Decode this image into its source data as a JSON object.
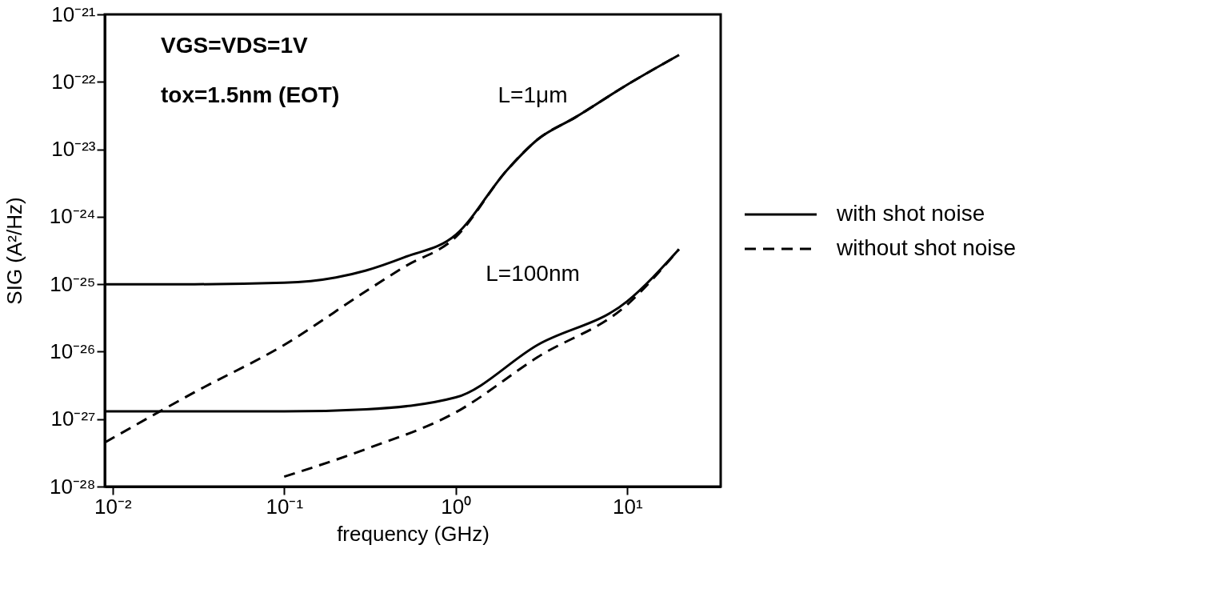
{
  "chart_data": {
    "type": "line",
    "xlabel": "frequency (GHz)",
    "ylabel": "SIG (A²/Hz)",
    "log": "xy",
    "grid": false,
    "legend": "right",
    "xlim": [
      0.009,
      35
    ],
    "ylim": [
      1e-28,
      1e-21
    ],
    "xticks": [
      {
        "value": 0.01,
        "label": "10⁻²"
      },
      {
        "value": 0.1,
        "label": "10⁻¹"
      },
      {
        "value": 1,
        "label": "10⁰"
      },
      {
        "value": 10,
        "label": "10¹"
      }
    ],
    "yticks": [
      {
        "value": 1e-28,
        "label": "10⁻²⁸"
      },
      {
        "value": 1e-27,
        "label": "10⁻²⁷"
      },
      {
        "value": 1e-26,
        "label": "10⁻²⁶"
      },
      {
        "value": 1e-25,
        "label": "10⁻²⁵"
      },
      {
        "value": 1e-24,
        "label": "10⁻²⁴"
      },
      {
        "value": 1e-23,
        "label": "10⁻²³"
      },
      {
        "value": 1e-22,
        "label": "10⁻²²"
      },
      {
        "value": 1e-21,
        "label": "10⁻²¹"
      }
    ],
    "annotations": [
      "VGS=VDS=1V",
      "tox=1.5nm (EOT)",
      "L=1μm",
      "L=100nm"
    ],
    "series": [
      {
        "name": "with shot noise",
        "color": "#000000",
        "line_style": "solid",
        "x": [
          0.009,
          0.03,
          0.1,
          0.2,
          0.3,
          0.5,
          1,
          2,
          3,
          5,
          10,
          20
        ],
        "values": [
          1e-25,
          1e-25,
          1.05e-25,
          1.26e-25,
          1.6e-25,
          2.5e-25,
          5.4e-25,
          5e-24,
          1.4e-23,
          3e-23,
          9.1e-23,
          2.5e-22
        ]
      },
      {
        "name": "without shot noise",
        "color": "#000000",
        "line_style": "dashed",
        "x": [
          0.009,
          0.03,
          0.1,
          0.3,
          0.5,
          1,
          2,
          3,
          5,
          10,
          20
        ],
        "values": [
          4.5e-28,
          2.5e-27,
          1.26e-26,
          7.9e-26,
          1.8e-25,
          5e-25,
          5e-24,
          1.4e-23,
          3e-23,
          9.1e-23,
          2.5e-22
        ]
      },
      {
        "color": "#000000",
        "line_style": "solid",
        "x": [
          0.009,
          0.1,
          0.3,
          1,
          3,
          10,
          20
        ],
        "values": [
          1.3e-27,
          1.3e-27,
          1.4e-27,
          2.1e-27,
          1.26e-26,
          5.6e-26,
          3.3e-25
        ]
      },
      {
        "color": "#000000",
        "line_style": "dashed",
        "x": [
          0.1,
          0.3,
          1,
          3,
          10,
          20
        ],
        "values": [
          1.4e-28,
          3.6e-28,
          1.26e-27,
          8.3e-27,
          5e-26,
          3.3e-25
        ]
      }
    ]
  }
}
